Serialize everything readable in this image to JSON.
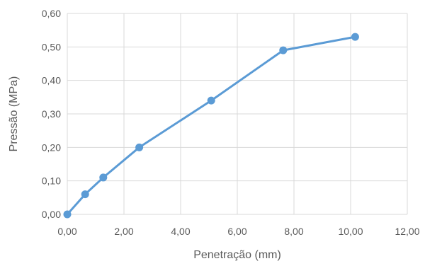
{
  "chart_data": {
    "type": "scatter",
    "title": "",
    "xlabel": "Penetração (mm)",
    "ylabel": "Pressão (MPa)",
    "xlim": [
      0,
      12
    ],
    "ylim": [
      0,
      0.6
    ],
    "x_ticks": [
      0,
      2,
      4,
      6,
      8,
      10,
      12
    ],
    "y_ticks": [
      0,
      0.1,
      0.2,
      0.3,
      0.4,
      0.5,
      0.6
    ],
    "x_tick_labels": [
      "0,00",
      "2,00",
      "4,00",
      "6,00",
      "8,00",
      "10,00",
      "12,00"
    ],
    "y_tick_labels": [
      "0,00",
      "0,10",
      "0,20",
      "0,30",
      "0,40",
      "0,50",
      "0,60"
    ],
    "grid": true,
    "legend": "none",
    "series": [
      {
        "color": "#5B9BD5",
        "line": true,
        "markers": true,
        "x": [
          0,
          0.63,
          1.27,
          2.54,
          5.08,
          7.62,
          10.16
        ],
        "y": [
          0,
          0.06,
          0.11,
          0.2,
          0.34,
          0.49,
          0.53
        ]
      }
    ]
  }
}
